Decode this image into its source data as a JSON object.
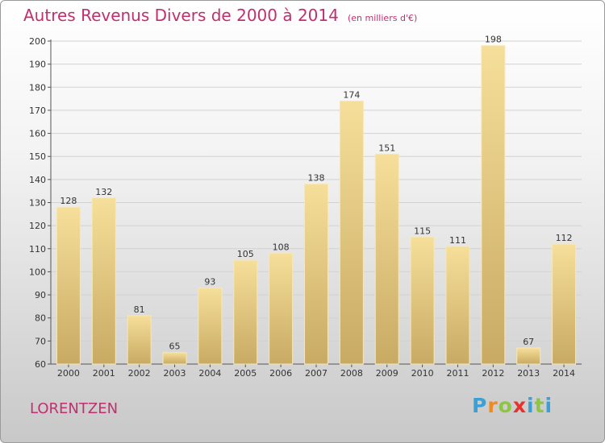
{
  "header": {
    "title": "Autres Revenus Divers de 2000 à 2014",
    "unit": "(en milliers d'€)"
  },
  "footer": {
    "location": "LORENTZEN",
    "brand": "Proxiti"
  },
  "colors": {
    "accent": "#c0306f",
    "bar_light": "#f6df9a",
    "bar_dark": "#c8aa63"
  },
  "chart_data": {
    "type": "bar",
    "categories": [
      "2000",
      "2001",
      "2002",
      "2003",
      "2004",
      "2005",
      "2006",
      "2007",
      "2008",
      "2009",
      "2010",
      "2011",
      "2012",
      "2013",
      "2014"
    ],
    "values": [
      128,
      132,
      81,
      65,
      93,
      105,
      108,
      138,
      174,
      151,
      115,
      111,
      198,
      67,
      112
    ],
    "title": "Autres Revenus Divers de 2000 à 2014",
    "subtitle": "(en milliers d'€)",
    "xlabel": "",
    "ylabel": "",
    "ylim": [
      60,
      200
    ],
    "yticks": [
      60,
      70,
      80,
      90,
      100,
      110,
      120,
      130,
      140,
      150,
      160,
      170,
      180,
      190,
      200
    ],
    "grid": true,
    "data_labels": true
  }
}
